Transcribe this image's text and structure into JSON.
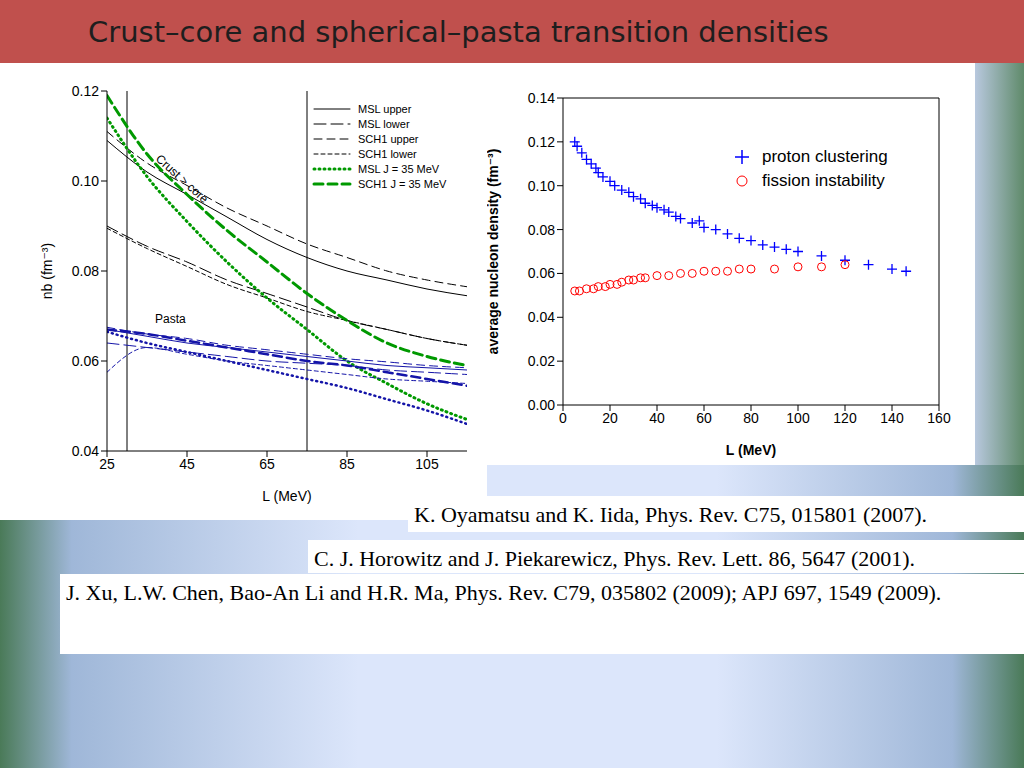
{
  "title": "Crust–core and spherical–pasta transition densities",
  "chart_data": [
    {
      "type": "line",
      "x_label": "L (MeV)",
      "y_label": "nb (fm⁻³)",
      "xlim": [
        25,
        115
      ],
      "xticks": [
        25,
        45,
        65,
        85,
        105
      ],
      "ylim": [
        0.04,
        0.12
      ],
      "yticks": [
        0.04,
        0.06,
        0.08,
        {
          "value": 0.1,
          "label": "0.10"
        },
        0.12
      ],
      "legend": "top-right",
      "annotations": [
        "Crust > core",
        "Pasta"
      ],
      "reference_lines": [
        30,
        75
      ],
      "x": [
        25,
        35,
        45,
        55,
        65,
        75,
        85,
        95,
        105,
        115
      ],
      "series": [
        {
          "name": "MSL upper",
          "color": "#000000",
          "line_style": "solid",
          "values": [
            0.109,
            0.102,
            0.097,
            0.092,
            0.087,
            0.083,
            0.08,
            0.078,
            0.076,
            0.0745
          ]
        },
        {
          "name": "MSL lower",
          "color": "#000000",
          "line_style": "long_dash",
          "values": [
            0.09,
            0.0855,
            0.082,
            0.078,
            0.075,
            0.072,
            0.069,
            0.067,
            0.065,
            0.0635
          ]
        },
        {
          "name": "SCH1 upper",
          "color": "#000000",
          "line_style": "dash",
          "values": [
            0.111,
            0.104,
            0.099,
            0.094,
            0.09,
            0.086,
            0.083,
            0.08,
            0.078,
            0.0765
          ]
        },
        {
          "name": "SCH1 lower",
          "color": "#000000",
          "line_style": "short_dash",
          "values": [
            0.0895,
            0.085,
            0.081,
            0.077,
            0.074,
            0.071,
            0.069,
            0.067,
            0.065,
            0.0635
          ]
        },
        {
          "name": "MSL J = 35 MeV",
          "color": "#009900",
          "line_style": "dotted",
          "values": [
            0.114,
            0.101,
            0.091,
            0.082,
            0.074,
            0.067,
            0.06,
            0.055,
            0.0505,
            0.047
          ]
        },
        {
          "name": "SCH1 J = 35 MeV",
          "color": "#009900",
          "line_style": "dashed",
          "values": [
            0.119,
            0.106,
            0.097,
            0.089,
            0.082,
            0.075,
            0.069,
            0.064,
            0.061,
            0.059
          ]
        }
      ],
      "pasta_series": [
        {
          "name": "MSL upper",
          "color": "#1414a8",
          "line_style": "solid",
          "values": [
            0.067,
            0.0655,
            0.064,
            0.063,
            0.062,
            0.061,
            0.06,
            0.059,
            0.0585,
            0.058
          ]
        },
        {
          "name": "MSL lower",
          "color": "#1414a8",
          "line_style": "long_dash",
          "values": [
            0.064,
            0.063,
            0.062,
            0.061,
            0.06,
            0.0595,
            0.059,
            0.058,
            0.0575,
            0.057
          ]
        },
        {
          "name": "SCH1 upper",
          "color": "#1414a8",
          "line_style": "dash",
          "values": [
            0.0675,
            0.066,
            0.065,
            0.0635,
            0.0625,
            0.0615,
            0.0605,
            0.0598,
            0.059,
            0.0585
          ]
        },
        {
          "name": "SCH1 lower",
          "color": "#1414a8",
          "line_style": "short_dash",
          "values": [
            0.0575,
            0.063,
            0.0615,
            0.06,
            0.059,
            0.058,
            0.057,
            0.056,
            0.0555,
            0.055
          ]
        },
        {
          "name": "MSL J = 35 MeV",
          "color": "#1414a8",
          "line_style": "dotted",
          "values": [
            0.0665,
            0.064,
            0.062,
            0.06,
            0.058,
            0.056,
            0.054,
            0.0515,
            0.049,
            0.046
          ]
        },
        {
          "name": "SCH1 J = 35 MeV",
          "color": "#1414a8",
          "line_style": "dashed",
          "values": [
            0.067,
            0.066,
            0.0645,
            0.063,
            0.0615,
            0.06,
            0.059,
            0.0575,
            0.056,
            0.0545
          ]
        }
      ]
    },
    {
      "type": "scatter",
      "x_label": "L (MeV)",
      "y_label": "average nucleon density (fm⁻³)",
      "xlim": [
        0,
        160
      ],
      "xticks": [
        0,
        20,
        40,
        60,
        80,
        100,
        120,
        140,
        160
      ],
      "ylim": [
        0,
        0.14
      ],
      "yticks": [
        {
          "value": 0,
          "label": "0.00"
        },
        0.02,
        0.04,
        0.06,
        0.08,
        {
          "value": 0.1,
          "label": "0.10"
        },
        0.12,
        0.14
      ],
      "legend": "top-right",
      "series": [
        {
          "name": "proton clustering",
          "color": "#0000ff",
          "marker": "plus",
          "x": [
            5,
            6,
            8,
            10,
            12,
            14,
            15,
            17,
            20,
            22,
            25,
            28,
            30,
            33,
            35,
            38,
            40,
            43,
            45,
            48,
            50,
            55,
            58,
            60,
            65,
            70,
            75,
            80,
            85,
            90,
            95,
            100,
            110,
            120,
            130,
            140,
            146
          ],
          "values": [
            0.12,
            0.118,
            0.115,
            0.112,
            0.11,
            0.108,
            0.106,
            0.104,
            0.102,
            0.1,
            0.098,
            0.097,
            0.095,
            0.094,
            0.092,
            0.091,
            0.09,
            0.089,
            0.088,
            0.086,
            0.085,
            0.083,
            0.084,
            0.081,
            0.08,
            0.078,
            0.076,
            0.075,
            0.073,
            0.072,
            0.071,
            0.07,
            0.068,
            0.066,
            0.064,
            0.062,
            0.061
          ]
        },
        {
          "name": "fission instability",
          "color": "#ff0000",
          "marker": "circle",
          "x": [
            5,
            7,
            10,
            13,
            15,
            18,
            20,
            23,
            25,
            28,
            30,
            33,
            35,
            40,
            45,
            50,
            55,
            60,
            65,
            70,
            75,
            80,
            90,
            100,
            110,
            120
          ],
          "values": [
            0.052,
            0.052,
            0.053,
            0.053,
            0.054,
            0.054,
            0.055,
            0.055,
            0.056,
            0.057,
            0.057,
            0.058,
            0.058,
            0.059,
            0.059,
            0.06,
            0.06,
            0.061,
            0.061,
            0.061,
            0.062,
            0.062,
            0.062,
            0.063,
            0.063,
            0.064
          ]
        }
      ]
    }
  ],
  "references": [
    "K. Oyamatsu and K. Iida, Phys. Rev. C75, 015801 (2007).",
    "C. J. Horowitz and J. Piekarewicz, Phys. Rev. Lett. 86, 5647 (2001).",
    "J. Xu, L.W. Chen, Bao-An Li and H.R. Ma, Phys. Rev. C79, 035802 (2009); APJ 697, 1549 (2009)."
  ]
}
